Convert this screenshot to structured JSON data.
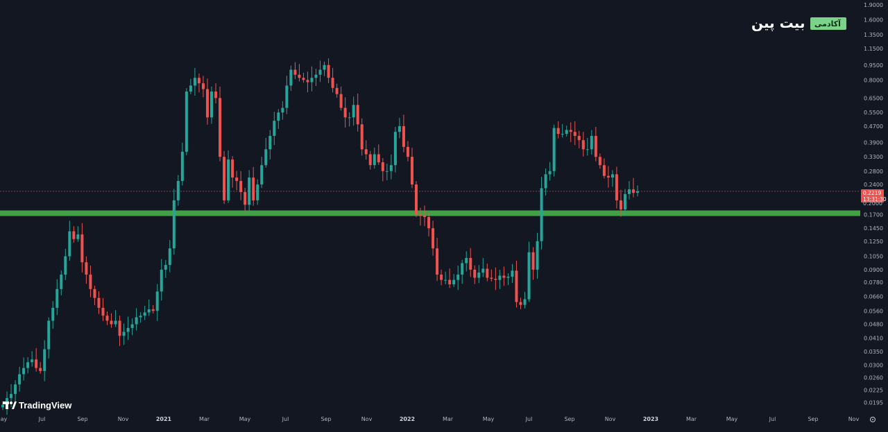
{
  "brand": {
    "logo_main": "بیت پین",
    "logo_badge": "آکادمی",
    "badge_color": "#7bd389",
    "watermark": "TradingView"
  },
  "colors": {
    "background": "#131722",
    "up": "#26a69a",
    "down": "#ef5350",
    "support_zone": "#43a047",
    "price_line": "#ef5350",
    "axis_text": "#b2b5be"
  },
  "price_tag": {
    "price": "0.2219",
    "countdown": "13:31:30"
  },
  "axis_hidden_label": "0.2000",
  "settings_icon": "gear-icon",
  "chart_data": {
    "type": "candlestick",
    "scale": "log",
    "interval": "weekly",
    "ylim": [
      0.0185,
      1.9
    ],
    "y_ticks": [
      "1.9000",
      "1.6000",
      "1.3500",
      "1.1500",
      "0.9500",
      "0.8000",
      "0.6500",
      "0.5500",
      "0.4700",
      "0.3900",
      "0.3300",
      "0.2800",
      "0.2400",
      "0.1700",
      "0.1450",
      "0.1250",
      "0.1050",
      "0.0900",
      "0.0780",
      "0.0660",
      "0.0560",
      "0.0480",
      "0.0410",
      "0.0350",
      "0.0300",
      "0.0260",
      "0.0225",
      "0.0195"
    ],
    "x_ticks": [
      {
        "label": "May",
        "bold": false
      },
      {
        "label": "Jul",
        "bold": false
      },
      {
        "label": "Sep",
        "bold": false
      },
      {
        "label": "Nov",
        "bold": false
      },
      {
        "label": "2021",
        "bold": true
      },
      {
        "label": "Mar",
        "bold": false
      },
      {
        "label": "May",
        "bold": false
      },
      {
        "label": "Jul",
        "bold": false
      },
      {
        "label": "Sep",
        "bold": false
      },
      {
        "label": "Nov",
        "bold": false
      },
      {
        "label": "2022",
        "bold": true
      },
      {
        "label": "Mar",
        "bold": false
      },
      {
        "label": "May",
        "bold": false
      },
      {
        "label": "Jul",
        "bold": false
      },
      {
        "label": "Sep",
        "bold": false
      },
      {
        "label": "Nov",
        "bold": false
      },
      {
        "label": "2023",
        "bold": true
      },
      {
        "label": "Mar",
        "bold": false
      },
      {
        "label": "May",
        "bold": false
      },
      {
        "label": "Jul",
        "bold": false
      },
      {
        "label": "Sep",
        "bold": false
      },
      {
        "label": "Nov",
        "bold": false
      }
    ],
    "support_zone": {
      "low": 0.169,
      "high": 0.178
    },
    "current_price": 0.2219,
    "closes": [
      0.019,
      0.0205,
      0.0215,
      0.024,
      0.027,
      0.029,
      0.031,
      0.032,
      0.029,
      0.028,
      0.036,
      0.05,
      0.058,
      0.072,
      0.085,
      0.105,
      0.14,
      0.128,
      0.135,
      0.098,
      0.085,
      0.072,
      0.065,
      0.058,
      0.053,
      0.05,
      0.048,
      0.05,
      0.042,
      0.044,
      0.046,
      0.048,
      0.052,
      0.053,
      0.055,
      0.057,
      0.056,
      0.07,
      0.09,
      0.095,
      0.115,
      0.2,
      0.25,
      0.35,
      0.7,
      0.75,
      0.82,
      0.77,
      0.72,
      0.52,
      0.7,
      0.65,
      0.33,
      0.2,
      0.32,
      0.26,
      0.25,
      0.22,
      0.19,
      0.26,
      0.2,
      0.24,
      0.3,
      0.36,
      0.42,
      0.5,
      0.55,
      0.58,
      0.75,
      0.9,
      0.85,
      0.82,
      0.8,
      0.78,
      0.82,
      0.85,
      0.9,
      0.95,
      0.82,
      0.73,
      0.68,
      0.58,
      0.52,
      0.52,
      0.6,
      0.48,
      0.36,
      0.34,
      0.3,
      0.34,
      0.31,
      0.28,
      0.28,
      0.3,
      0.44,
      0.47,
      0.37,
      0.33,
      0.24,
      0.17,
      0.168,
      0.165,
      0.145,
      0.115,
      0.085,
      0.08,
      0.08,
      0.076,
      0.08,
      0.085,
      0.097,
      0.103,
      0.09,
      0.082,
      0.087,
      0.091,
      0.082,
      0.081,
      0.08,
      0.084,
      0.082,
      0.083,
      0.089,
      0.062,
      0.06,
      0.064,
      0.11,
      0.09,
      0.125,
      0.23,
      0.27,
      0.28,
      0.46,
      0.43,
      0.43,
      0.45,
      0.44,
      0.42,
      0.4,
      0.36,
      0.36,
      0.42,
      0.33,
      0.3,
      0.265,
      0.26,
      0.27,
      0.2,
      0.18,
      0.215,
      0.227,
      0.218,
      0.2219
    ]
  }
}
